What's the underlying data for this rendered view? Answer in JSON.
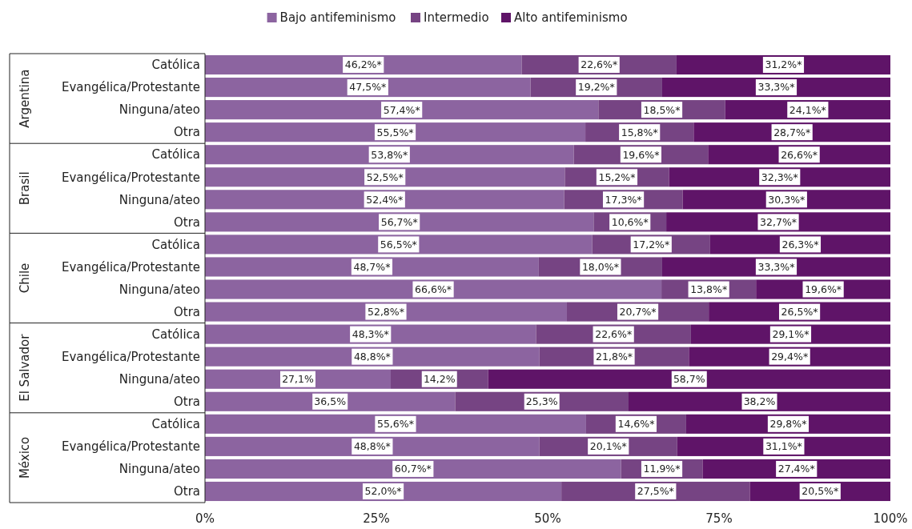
{
  "chart_data": {
    "type": "bar",
    "orientation": "horizontal",
    "stacked": true,
    "legend": "top",
    "categories": [
      "Católica",
      "Evangélica/Protestante",
      "Ninguna/ateo",
      "Otra",
      "Católica",
      "Evangélica/Protestante",
      "Ninguna/ateo",
      "Otra",
      "Católica",
      "Evangélica/Protestante",
      "Ninguna/ateo",
      "Otra",
      "Católica",
      "Evangélica/Protestante",
      "Ninguna/ateo",
      "Otra",
      "Católica",
      "Evangélica/Protestante",
      "Ninguna/ateo",
      "Otra"
    ],
    "annotations": [
      "Argentina",
      "Brasil",
      "Chile",
      "El Salvador",
      "México"
    ],
    "xlim": [
      0,
      100
    ],
    "xticks": [
      {
        "value": 0,
        "label": "0%"
      },
      {
        "value": 25,
        "label": "25%"
      },
      {
        "value": 50,
        "label": "50%"
      },
      {
        "value": 75,
        "label": "75%"
      },
      {
        "value": 100,
        "label": "100%"
      }
    ],
    "series": [
      {
        "name": "Bajo antifeminismo",
        "color": "#8c64a0",
        "values": [
          46.2,
          47.5,
          57.4,
          55.5,
          53.8,
          52.5,
          52.4,
          56.7,
          56.5,
          48.7,
          66.6,
          52.8,
          48.3,
          48.8,
          27.1,
          36.5,
          55.6,
          48.8,
          60.7,
          52.0
        ],
        "value_labels": [
          "46,2%*",
          "47,5%*",
          "57,4%*",
          "55,5%*",
          "53,8%*",
          "52,5%*",
          "52,4%*",
          "56,7%*",
          "56,5%*",
          "48,7%*",
          "66,6%*",
          "52,8%*",
          "48,3%*",
          "48,8%*",
          "27,1%",
          "36,5%",
          "55,6%*",
          "48,8%*",
          "60,7%*",
          "52,0%*"
        ]
      },
      {
        "name": "Intermedio",
        "color": "#764483",
        "values": [
          22.6,
          19.2,
          18.5,
          15.8,
          19.6,
          15.2,
          17.3,
          10.6,
          17.2,
          18.0,
          13.8,
          20.7,
          22.6,
          21.8,
          14.2,
          25.3,
          14.6,
          20.1,
          11.9,
          27.5
        ],
        "value_labels": [
          "22,6%*",
          "19,2%*",
          "18,5%*",
          "15,8%*",
          "19,6%*",
          "15,2%*",
          "17,3%*",
          "10,6%*",
          "17,2%*",
          "18,0%*",
          "13,8%*",
          "20,7%*",
          "22,6%*",
          "21,8%*",
          "14,2%",
          "25,3%",
          "14,6%*",
          "20,1%*",
          "11,9%*",
          "27,5%*"
        ]
      },
      {
        "name": "Alto antifeminismo",
        "color": "#5f1468",
        "values": [
          31.2,
          33.3,
          24.1,
          28.7,
          26.6,
          32.3,
          30.3,
          32.7,
          26.3,
          33.3,
          19.6,
          26.5,
          29.1,
          29.4,
          58.7,
          38.2,
          29.8,
          31.1,
          27.4,
          20.5
        ],
        "value_labels": [
          "31,2%*",
          "33,3%*",
          "24,1%*",
          "28,7%*",
          "26,6%*",
          "32,3%*",
          "30,3%*",
          "32,7%*",
          "26,3%*",
          "33,3%*",
          "19,6%*",
          "26,5%*",
          "29,1%*",
          "29,4%*",
          "58,7%",
          "38,2%",
          "29,8%*",
          "31,1%*",
          "27,4%*",
          "20,5%*"
        ]
      }
    ]
  }
}
